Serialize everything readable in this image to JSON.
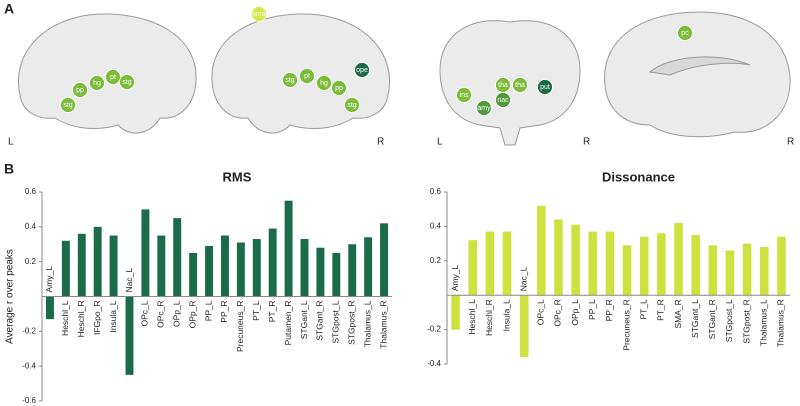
{
  "panel_labels": [
    "A",
    "B"
  ],
  "brains": [
    {
      "sides": [
        "L"
      ],
      "nodes": [
        {
          "label": "pp",
          "color": "#7cbc3a"
        },
        {
          "label": "hg",
          "color": "#7cbc3a"
        },
        {
          "label": "pt",
          "color": "#7cbc3a"
        },
        {
          "label": "stg",
          "color": "#7cbc3a"
        },
        {
          "label": "stg",
          "color": "#7cbc3a"
        }
      ]
    },
    {
      "sides": [
        "R"
      ],
      "nodes": [
        {
          "label": "sma",
          "color": "#d6e84a"
        },
        {
          "label": "stg",
          "color": "#7cbc3a"
        },
        {
          "label": "pt",
          "color": "#7cbc3a"
        },
        {
          "label": "hg",
          "color": "#7cbc3a"
        },
        {
          "label": "pp",
          "color": "#7cbc3a"
        },
        {
          "label": "ope",
          "color": "#1b6b4a"
        },
        {
          "label": "stg",
          "color": "#7cbc3a"
        }
      ]
    },
    {
      "sides": [
        "L",
        "R"
      ],
      "nodes": [
        {
          "label": "ins",
          "color": "#7cbc3a"
        },
        {
          "label": "tha",
          "color": "#7cbc3a"
        },
        {
          "label": "tha",
          "color": "#7cbc3a"
        },
        {
          "label": "amy",
          "color": "#4f9a3a"
        },
        {
          "label": "nac",
          "color": "#4f9a3a"
        },
        {
          "label": "put",
          "color": "#1b6b4a"
        }
      ]
    },
    {
      "sides": [
        "R"
      ],
      "nodes": [
        {
          "label": "pc",
          "color": "#7cbc3a"
        }
      ]
    }
  ],
  "chart_data": [
    {
      "type": "bar",
      "title": "RMS",
      "y_label": "Average r over peaks",
      "color": "#1b6b4a",
      "categories": [
        "Amy_L",
        "Heschl_L",
        "Heschl_R",
        "IFGpo_R",
        "Insula_L",
        "Nac_L",
        "OPc_L",
        "OPc_R",
        "OPp_L",
        "OPp_R",
        "PP_L",
        "PP_R",
        "Precuneus_R",
        "PT_L",
        "PT_R",
        "Putamen_R",
        "STGant_L",
        "STGant_R",
        "STGpost_L",
        "STGpost_R",
        "Thalamus_L",
        "Thalamus_R"
      ],
      "values": [
        -0.13,
        0.32,
        0.36,
        0.4,
        0.35,
        -0.45,
        0.5,
        0.35,
        0.45,
        0.25,
        0.29,
        0.35,
        0.31,
        0.33,
        0.39,
        0.55,
        0.33,
        0.28,
        0.25,
        0.3,
        0.34,
        0.42
      ],
      "ylim": [
        -0.6,
        0.6
      ],
      "yticks": [
        0.6,
        0.4,
        0.2,
        -0.2,
        -0.4,
        -0.6
      ]
    },
    {
      "type": "bar",
      "title": "Dissonance",
      "color": "#cde23e",
      "categories": [
        "Amy_L",
        "Heschl_L",
        "Heschl_R",
        "Insula_L",
        "Nac_L",
        "OPc_L",
        "OPc_R",
        "OPp_L",
        "PP_L",
        "PP_R",
        "Precuneus_R",
        "PT_L",
        "PT_R",
        "SMA_R",
        "STGant_L",
        "STGant_R",
        "STGpost_L",
        "STGpost_R",
        "Thalamus_L",
        "Thalamus_R"
      ],
      "values": [
        -0.2,
        0.32,
        0.37,
        0.37,
        -0.36,
        0.52,
        0.44,
        0.41,
        0.37,
        0.37,
        0.29,
        0.34,
        0.36,
        0.42,
        0.35,
        0.29,
        0.26,
        0.3,
        0.28,
        0.34
      ],
      "ylim": [
        -0.4,
        0.6
      ],
      "yticks": [
        0.6,
        0.4,
        0.2,
        -0.2,
        -0.4
      ]
    }
  ]
}
